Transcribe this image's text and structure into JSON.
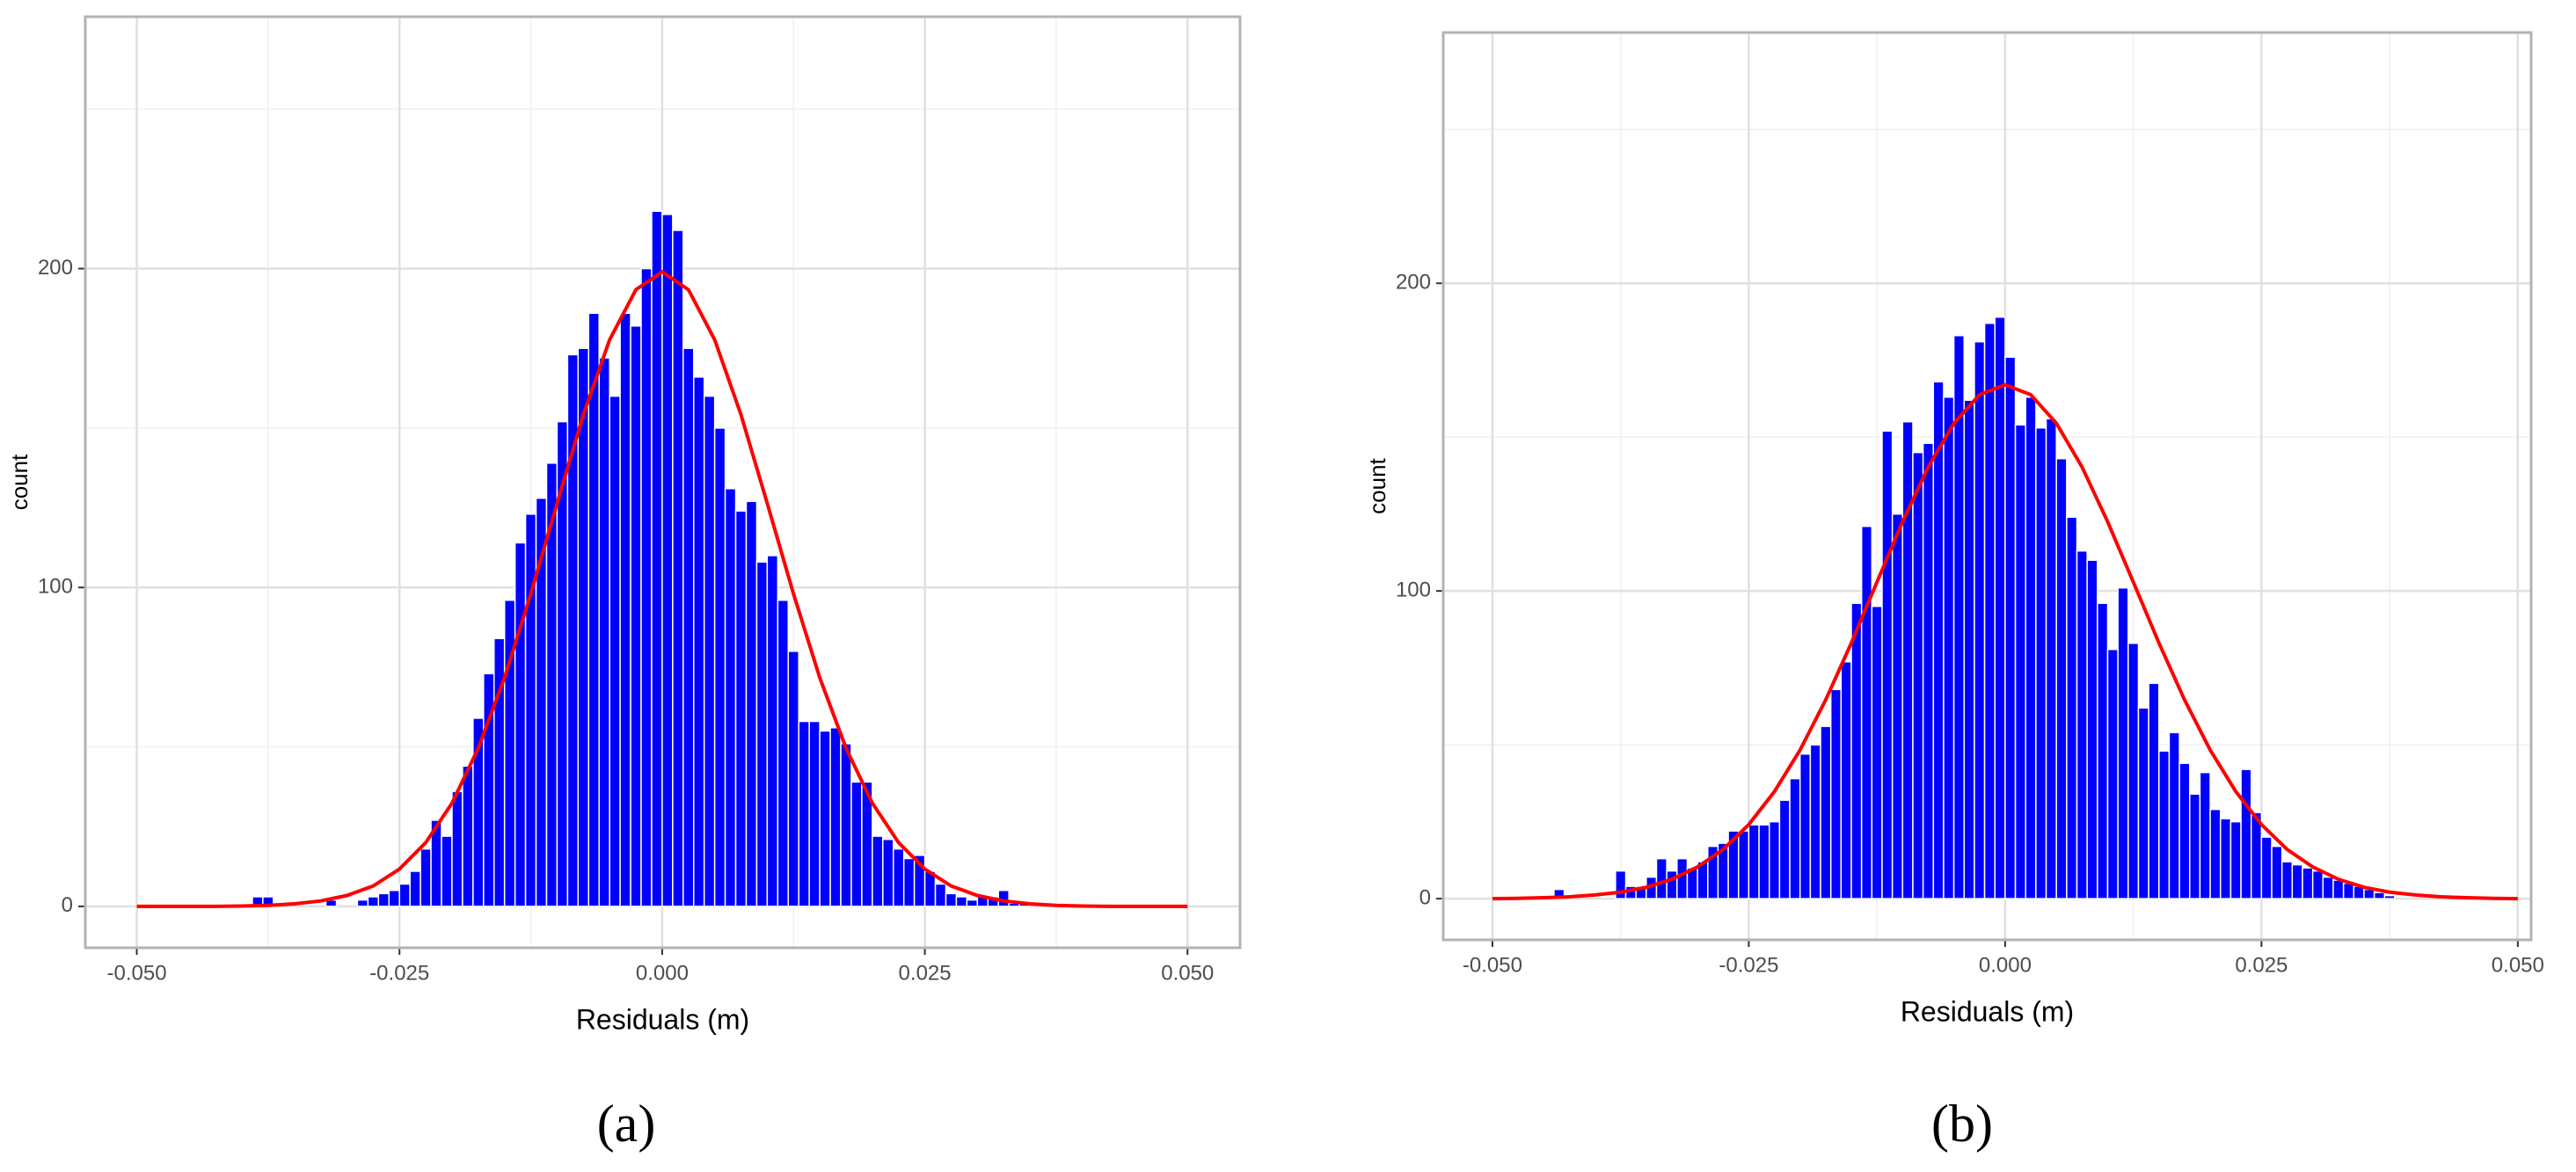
{
  "chart_data": [
    {
      "type": "histogram",
      "panel_label": "(a)",
      "x_label": "Residuals (m)",
      "y_label": "count",
      "color": "#0000ff",
      "grid": true,
      "bins": [
        -0.039,
        -0.038,
        -0.037,
        -0.036,
        -0.035,
        -0.034,
        -0.033,
        -0.032,
        -0.031,
        -0.03,
        -0.029,
        -0.028,
        -0.027,
        -0.026,
        -0.025,
        -0.024,
        -0.023,
        -0.022,
        -0.021,
        -0.02,
        -0.019,
        -0.018,
        -0.017,
        -0.016,
        -0.015,
        -0.014,
        -0.013,
        -0.012,
        -0.011,
        -0.01,
        -0.009,
        -0.008,
        -0.007,
        -0.006,
        -0.005,
        -0.004,
        -0.003,
        -0.002,
        -0.001,
        0,
        0.001,
        0.002,
        0.003,
        0.004,
        0.005,
        0.006,
        0.007,
        0.008,
        0.009,
        0.01,
        0.011,
        0.012,
        0.013,
        0.014,
        0.015,
        0.016,
        0.017,
        0.018,
        0.019,
        0.02,
        0.021,
        0.022,
        0.023,
        0.024,
        0.025,
        0.026,
        0.027,
        0.028,
        0.029,
        0.03,
        0.031,
        0.032,
        0.033,
        0.034,
        0.035
      ],
      "values": [
        3,
        3,
        0,
        0,
        0,
        0,
        0,
        2,
        0,
        0,
        2,
        3,
        4,
        5,
        7,
        11,
        18,
        27,
        22,
        36,
        44,
        59,
        73,
        84,
        96,
        114,
        123,
        128,
        139,
        152,
        173,
        175,
        186,
        172,
        160,
        186,
        182,
        200,
        218,
        217,
        212,
        175,
        166,
        160,
        150,
        131,
        124,
        127,
        108,
        110,
        96,
        80,
        58,
        58,
        55,
        56,
        51,
        39,
        39,
        22,
        21,
        18,
        15,
        16,
        11,
        7,
        4,
        3,
        2,
        3,
        3,
        5,
        1,
        1
      ],
      "curve": {
        "color": "#ff0000",
        "x": [
          -0.05,
          -0.0475,
          -0.045,
          -0.0425,
          -0.04,
          -0.0375,
          -0.035,
          -0.0325,
          -0.03,
          -0.0275,
          -0.025,
          -0.0225,
          -0.02,
          -0.0175,
          -0.015,
          -0.0125,
          -0.01,
          -0.0075,
          -0.005,
          -0.0025,
          0,
          0.0025,
          0.005,
          0.0075,
          0.01,
          0.0125,
          0.015,
          0.0175,
          0.02,
          0.0225,
          0.025,
          0.0275,
          0.03,
          0.0325,
          0.035,
          0.0375,
          0.04,
          0.0425,
          0.045,
          0.0475,
          0.05
        ],
        "values": [
          0,
          0,
          0,
          0,
          0.1,
          0.3,
          0.8,
          1.7,
          3.4,
          6.4,
          11.7,
          20,
          32.4,
          49.6,
          71.7,
          98,
          126.4,
          154.2,
          177.7,
          193.4,
          199,
          193.4,
          177.7,
          154.2,
          126.4,
          98,
          71.7,
          49.6,
          32.4,
          20,
          11.7,
          6.4,
          3.4,
          1.7,
          0.8,
          0.3,
          0.1,
          0,
          0,
          0,
          0
        ]
      },
      "xlim": [
        -0.0549,
        0.055
      ],
      "ylim": [
        -13,
        279
      ],
      "xticks": [
        {
          "value": -0.05,
          "label": "-0.050"
        },
        {
          "value": -0.025,
          "label": "-0.025"
        },
        {
          "value": 0,
          "label": "0.000"
        },
        {
          "value": 0.025,
          "label": "0.025"
        },
        {
          "value": 0.05,
          "label": "0.050"
        }
      ],
      "yticks": [
        0,
        100,
        200
      ]
    },
    {
      "type": "histogram",
      "panel_label": "(b)",
      "x_label": "Residuals (m)",
      "y_label": "count",
      "color": "#0000ff",
      "grid": true,
      "bins": [
        -0.044,
        -0.043,
        -0.042,
        -0.041,
        -0.04,
        -0.039,
        -0.038,
        -0.037,
        -0.036,
        -0.035,
        -0.034,
        -0.033,
        -0.032,
        -0.031,
        -0.03,
        -0.029,
        -0.028,
        -0.027,
        -0.026,
        -0.025,
        -0.024,
        -0.023,
        -0.022,
        -0.021,
        -0.02,
        -0.019,
        -0.018,
        -0.017,
        -0.016,
        -0.015,
        -0.014,
        -0.013,
        -0.012,
        -0.011,
        -0.01,
        -0.009,
        -0.008,
        -0.007,
        -0.006,
        -0.005,
        -0.004,
        -0.003,
        -0.002,
        -0.001,
        0,
        0.001,
        0.002,
        0.003,
        0.004,
        0.005,
        0.006,
        0.007,
        0.008,
        0.009,
        0.01,
        0.011,
        0.012,
        0.013,
        0.014,
        0.015,
        0.016,
        0.017,
        0.018,
        0.019,
        0.02,
        0.021,
        0.022,
        0.023,
        0.024,
        0.025,
        0.026,
        0.027,
        0.028,
        0.029,
        0.03,
        0.031,
        0.032,
        0.033,
        0.034,
        0.035,
        0.036,
        0.037,
        0.038
      ],
      "values": [
        3,
        0,
        0,
        0,
        0,
        0,
        9,
        4,
        4,
        7,
        13,
        9,
        13,
        10,
        12,
        17,
        18,
        22,
        22,
        24,
        24,
        25,
        32,
        39,
        47,
        50,
        56,
        68,
        77,
        96,
        121,
        95,
        152,
        125,
        155,
        145,
        148,
        168,
        163,
        183,
        162,
        181,
        187,
        189,
        176,
        154,
        163,
        153,
        156,
        143,
        124,
        113,
        110,
        96,
        81,
        101,
        83,
        62,
        70,
        48,
        54,
        44,
        34,
        41,
        29,
        26,
        25,
        42,
        28,
        20,
        17,
        12,
        11,
        10,
        9,
        7,
        6,
        5,
        4,
        3,
        2,
        1
      ],
      "curve": {
        "color": "#ff0000",
        "x": [
          -0.05,
          -0.0475,
          -0.045,
          -0.0425,
          -0.04,
          -0.0375,
          -0.035,
          -0.0325,
          -0.03,
          -0.0275,
          -0.025,
          -0.0225,
          -0.02,
          -0.0175,
          -0.015,
          -0.0125,
          -0.01,
          -0.0075,
          -0.005,
          -0.0025,
          0,
          0.0025,
          0.005,
          0.0075,
          0.01,
          0.0125,
          0.015,
          0.0175,
          0.02,
          0.0225,
          0.025,
          0.0275,
          0.03,
          0.0325,
          0.035,
          0.0375,
          0.04,
          0.0425,
          0.045,
          0.0475,
          0.05
        ],
        "values": [
          0,
          0.1,
          0.3,
          0.6,
          1.2,
          2.1,
          3.7,
          6.3,
          10.3,
          16,
          24.1,
          34.8,
          48.3,
          64.6,
          83.1,
          102.9,
          122.5,
          140.3,
          154.5,
          163.8,
          167,
          163.8,
          154.5,
          140.3,
          122.5,
          102.9,
          83.1,
          64.6,
          48.3,
          34.8,
          24.1,
          16,
          10.3,
          6.3,
          3.7,
          2.1,
          1.2,
          0.6,
          0.3,
          0.1,
          0
        ]
      },
      "xlim": [
        -0.0548,
        0.0513
      ],
      "ylim": [
        -13.4,
        281.5
      ],
      "xticks": [
        {
          "value": -0.05,
          "label": "-0.050"
        },
        {
          "value": -0.025,
          "label": "-0.025"
        },
        {
          "value": 0,
          "label": "0.000"
        },
        {
          "value": 0.025,
          "label": "0.025"
        },
        {
          "value": 0.05,
          "label": "0.050"
        }
      ],
      "yticks": [
        0,
        100,
        200
      ]
    }
  ]
}
